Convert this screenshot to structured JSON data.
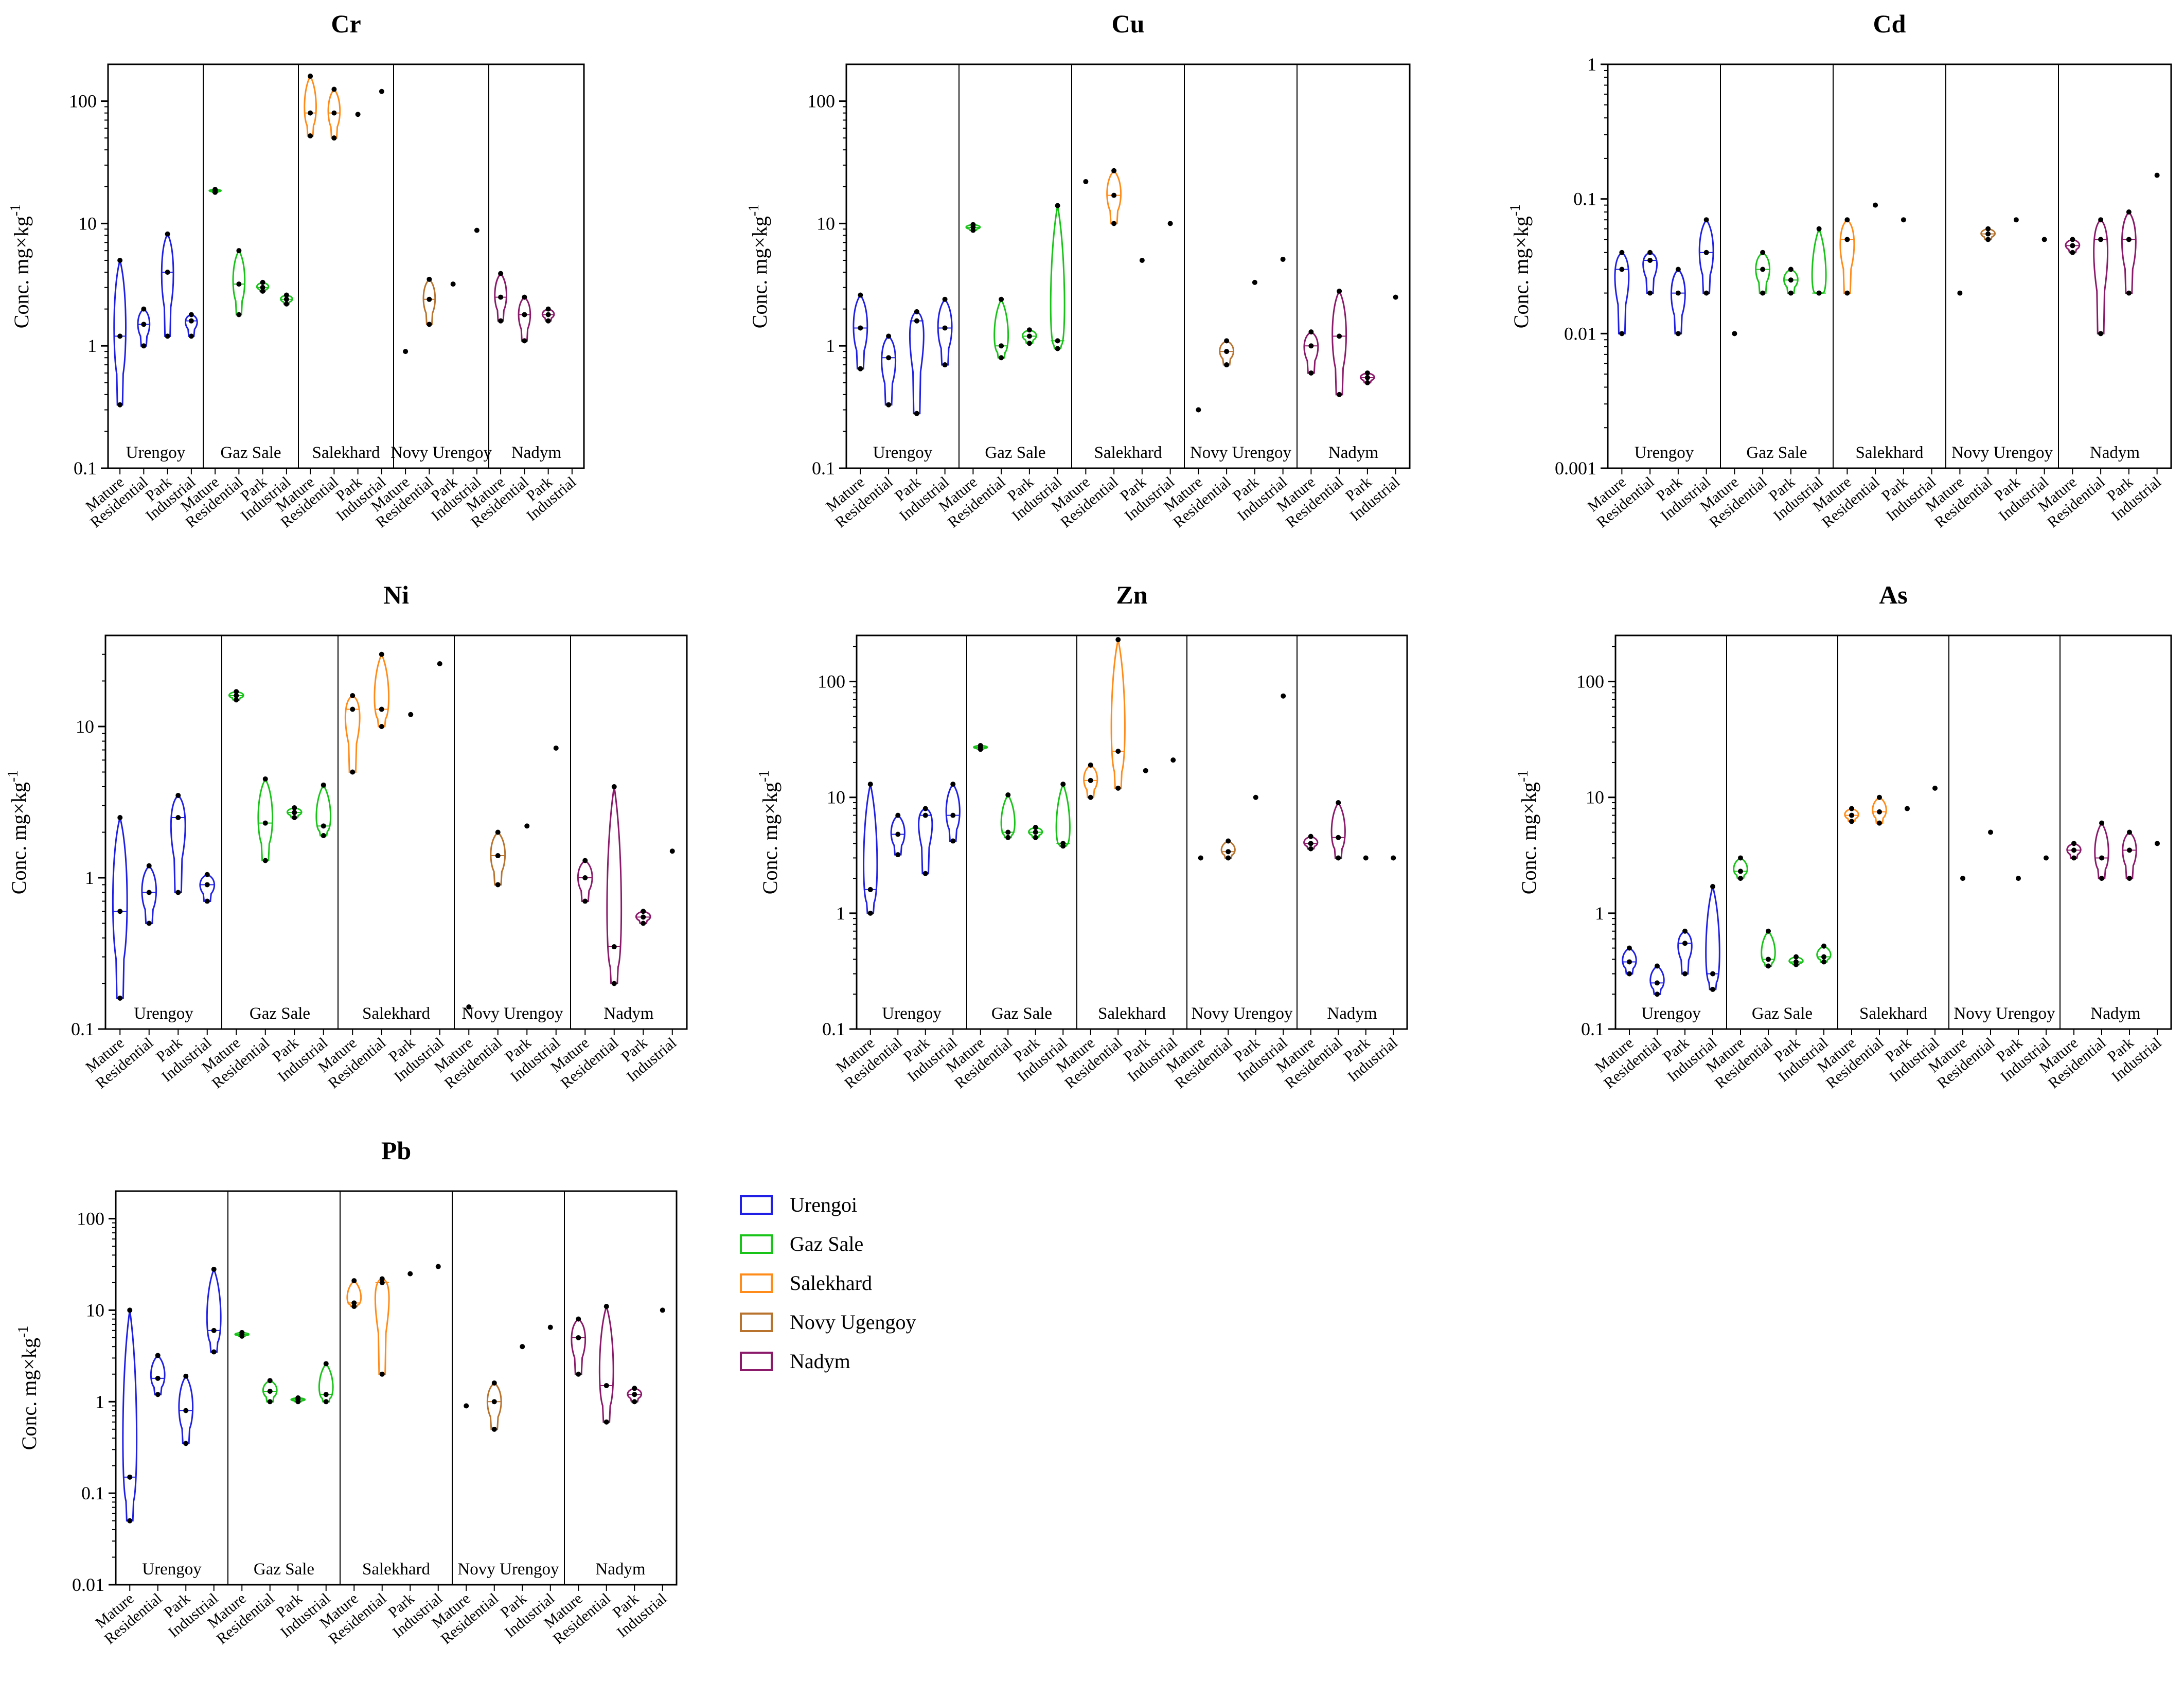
{
  "chart_data": {
    "type": "violin",
    "ylabel": "Conc. mg×kg-1",
    "ylabel_main": "Conc. mg×kg",
    "ylabel_sup": "-1",
    "yscale": "log",
    "cities": [
      "Urengoy",
      "Gaz Sale",
      "Salekhard",
      "Novy Urengoy",
      "Nadym"
    ],
    "categories": [
      "Mature",
      "Residential",
      "Park",
      "Industrial"
    ],
    "legend": [
      {
        "label": "Urengoi",
        "color": "#1f1fe6"
      },
      {
        "label": "Gaz Sale",
        "color": "#19c419"
      },
      {
        "label": "Salekhard",
        "color": "#ff8c1a"
      },
      {
        "label": "Novy Ugengoy",
        "color": "#b8732e"
      },
      {
        "label": "Nadym",
        "color": "#8b1a6b"
      }
    ],
    "panels": [
      {
        "title": "Cr",
        "ylim": [
          0.1,
          200
        ],
        "ticks": [
          {
            "v": 0.1,
            "l": "0.1"
          },
          {
            "v": 1,
            "l": "1"
          },
          {
            "v": 10,
            "l": "10"
          },
          {
            "v": 100,
            "l": "100"
          }
        ],
        "groups": [
          [
            [
              0.33,
              1.2,
              5
            ],
            [
              1,
              1.5,
              2
            ],
            [
              1.2,
              4,
              8.2
            ],
            [
              1.2,
              1.6,
              1.8
            ]
          ],
          [
            [
              18,
              18.5,
              19
            ],
            [
              1.8,
              3.2,
              6
            ],
            [
              2.8,
              3,
              3.3
            ],
            [
              2.2,
              2.4,
              2.6
            ]
          ],
          [
            [
              52,
              80,
              160
            ],
            [
              50,
              80,
              125
            ],
            [
              78
            ],
            [
              120
            ]
          ],
          [
            [
              0.9
            ],
            [
              1.5,
              2.4,
              3.5
            ],
            [
              3.2
            ],
            [
              8.8
            ]
          ],
          [
            [
              1.6,
              2.5,
              3.9
            ],
            [
              1.1,
              1.8,
              2.5
            ],
            [
              1.6,
              1.8,
              2
            ]
          ]
        ]
      },
      {
        "title": "Cu",
        "ylim": [
          0.1,
          200
        ],
        "ticks": [
          {
            "v": 0.1,
            "l": "0.1"
          },
          {
            "v": 1,
            "l": "1"
          },
          {
            "v": 10,
            "l": "10"
          },
          {
            "v": 100,
            "l": "100"
          }
        ],
        "groups": [
          [
            [
              0.65,
              1.4,
              2.6
            ],
            [
              0.33,
              0.8,
              1.2
            ],
            [
              0.28,
              1.6,
              1.9
            ],
            [
              0.7,
              1.4,
              2.4
            ]
          ],
          [
            [
              8.8,
              9.3,
              9.8
            ],
            [
              0.8,
              1,
              2.4
            ],
            [
              1.05,
              1.2,
              1.35
            ],
            [
              0.95,
              1.1,
              14
            ]
          ],
          [
            [
              22
            ],
            [
              10,
              17,
              27
            ],
            [
              5
            ],
            [
              10
            ]
          ],
          [
            [
              0.3
            ],
            [
              0.7,
              0.9,
              1.1
            ],
            [
              3.3
            ],
            [
              5.1
            ]
          ],
          [
            [
              0.6,
              1,
              1.3
            ],
            [
              0.4,
              1.2,
              2.8
            ],
            [
              0.5,
              0.55,
              0.6
            ],
            [
              2.5
            ]
          ]
        ]
      },
      {
        "title": "Cd",
        "ylim": [
          0.001,
          1
        ],
        "ticks": [
          {
            "v": 0.001,
            "l": "0.001"
          },
          {
            "v": 0.01,
            "l": "0.01"
          },
          {
            "v": 0.1,
            "l": "0.1"
          },
          {
            "v": 1,
            "l": "1"
          }
        ],
        "groups": [
          [
            [
              0.01,
              0.03,
              0.04
            ],
            [
              0.02,
              0.035,
              0.04
            ],
            [
              0.01,
              0.02,
              0.03
            ],
            [
              0.02,
              0.04,
              0.07
            ]
          ],
          [
            [
              0.01
            ],
            [
              0.02,
              0.03,
              0.04
            ],
            [
              0.02,
              0.025,
              0.03
            ],
            [
              0.02,
              0.02,
              0.06
            ]
          ],
          [
            [
              0.02,
              0.05,
              0.07
            ],
            [
              0.09
            ],
            [
              0.07
            ]
          ],
          [
            [
              0.02
            ],
            [
              0.05,
              0.055,
              0.06
            ],
            [
              0.07
            ],
            [
              0.05
            ]
          ],
          [
            [
              0.04,
              0.045,
              0.05
            ],
            [
              0.01,
              0.05,
              0.07
            ],
            [
              0.02,
              0.05,
              0.08
            ],
            [
              0.15
            ]
          ]
        ]
      },
      {
        "title": "Ni",
        "ylim": [
          0.1,
          40
        ],
        "ticks": [
          {
            "v": 0.1,
            "l": "0.1"
          },
          {
            "v": 1,
            "l": "1"
          },
          {
            "v": 10,
            "l": "10"
          }
        ],
        "groups": [
          [
            [
              0.16,
              0.6,
              2.5
            ],
            [
              0.5,
              0.8,
              1.2
            ],
            [
              0.8,
              2.5,
              3.5
            ],
            [
              0.7,
              0.9,
              1.05
            ]
          ],
          [
            [
              15,
              16,
              17
            ],
            [
              1.3,
              2.3,
              4.5
            ],
            [
              2.5,
              2.7,
              2.9
            ],
            [
              1.9,
              2.2,
              4.1
            ]
          ],
          [
            [
              5,
              13,
              16
            ],
            [
              10,
              13,
              30
            ],
            [
              12
            ],
            [
              26
            ]
          ],
          [
            [
              0.14
            ],
            [
              0.9,
              1.4,
              2
            ],
            [
              2.2
            ],
            [
              7.2
            ]
          ],
          [
            [
              0.7,
              1,
              1.3
            ],
            [
              0.2,
              0.35,
              4
            ],
            [
              0.5,
              0.55,
              0.6
            ],
            [
              1.5
            ]
          ]
        ]
      },
      {
        "title": "Zn",
        "ylim": [
          0.1,
          250
        ],
        "ticks": [
          {
            "v": 0.1,
            "l": "0.1"
          },
          {
            "v": 1,
            "l": "1"
          },
          {
            "v": 10,
            "l": "10"
          },
          {
            "v": 100,
            "l": "100"
          }
        ],
        "groups": [
          [
            [
              1,
              1.6,
              13
            ],
            [
              3.2,
              4.8,
              7
            ],
            [
              2.2,
              7,
              8
            ],
            [
              4.2,
              7,
              13
            ]
          ],
          [
            [
              26,
              27,
              28
            ],
            [
              4.5,
              5,
              10.5
            ],
            [
              4.5,
              5,
              5.5
            ],
            [
              3.8,
              4,
              13
            ]
          ],
          [
            [
              10,
              14,
              19
            ],
            [
              12,
              25,
              230
            ],
            [
              17
            ],
            [
              21
            ]
          ],
          [
            [
              3
            ],
            [
              3,
              3.4,
              4.2
            ],
            [
              10
            ],
            [
              75
            ]
          ],
          [
            [
              3.6,
              4,
              4.6
            ],
            [
              3,
              4.5,
              9
            ],
            [
              3
            ],
            [
              3
            ]
          ]
        ]
      },
      {
        "title": "As",
        "ylim": [
          0.1,
          250
        ],
        "ticks": [
          {
            "v": 0.1,
            "l": "0.1"
          },
          {
            "v": 1,
            "l": "1"
          },
          {
            "v": 10,
            "l": "10"
          },
          {
            "v": 100,
            "l": "100"
          }
        ],
        "groups": [
          [
            [
              0.3,
              0.38,
              0.5
            ],
            [
              0.2,
              0.25,
              0.35
            ],
            [
              0.3,
              0.55,
              0.7
            ],
            [
              0.22,
              0.3,
              1.7
            ]
          ],
          [
            [
              2,
              2.3,
              3
            ],
            [
              0.35,
              0.4,
              0.7
            ],
            [
              0.36,
              0.38,
              0.42
            ],
            [
              0.38,
              0.42,
              0.52
            ]
          ],
          [
            [
              6.2,
              7,
              8
            ],
            [
              6,
              7.5,
              10
            ],
            [
              8
            ],
            [
              12
            ]
          ],
          [
            [
              2
            ],
            [
              5
            ],
            [
              2
            ],
            [
              3
            ]
          ],
          [
            [
              3,
              3.5,
              4
            ],
            [
              2,
              3,
              6
            ],
            [
              2,
              3.5,
              5
            ],
            [
              4
            ]
          ]
        ]
      },
      {
        "title": "Pb",
        "ylim": [
          0.01,
          200
        ],
        "ticks": [
          {
            "v": 0.01,
            "l": "0.01"
          },
          {
            "v": 0.1,
            "l": "0.1"
          },
          {
            "v": 1,
            "l": "1"
          },
          {
            "v": 10,
            "l": "10"
          },
          {
            "v": 100,
            "l": "100"
          }
        ],
        "groups": [
          [
            [
              0.05,
              0.15,
              10
            ],
            [
              1.2,
              1.8,
              3.2
            ],
            [
              0.35,
              0.8,
              1.9
            ],
            [
              3.5,
              6,
              28
            ]
          ],
          [
            [
              5.2,
              5.4,
              5.7
            ],
            [
              1,
              1.3,
              1.7
            ],
            [
              1,
              1.05,
              1.1
            ],
            [
              1,
              1.2,
              2.6
            ]
          ],
          [
            [
              11,
              12,
              21
            ],
            [
              2,
              20,
              22
            ],
            [
              25
            ],
            [
              30
            ]
          ],
          [
            [
              0.9
            ],
            [
              0.5,
              1,
              1.6
            ],
            [
              4
            ],
            [
              6.5
            ]
          ],
          [
            [
              2,
              5,
              8
            ],
            [
              0.6,
              1.5,
              11
            ],
            [
              1,
              1.2,
              1.4
            ],
            [
              10
            ]
          ]
        ]
      }
    ]
  }
}
